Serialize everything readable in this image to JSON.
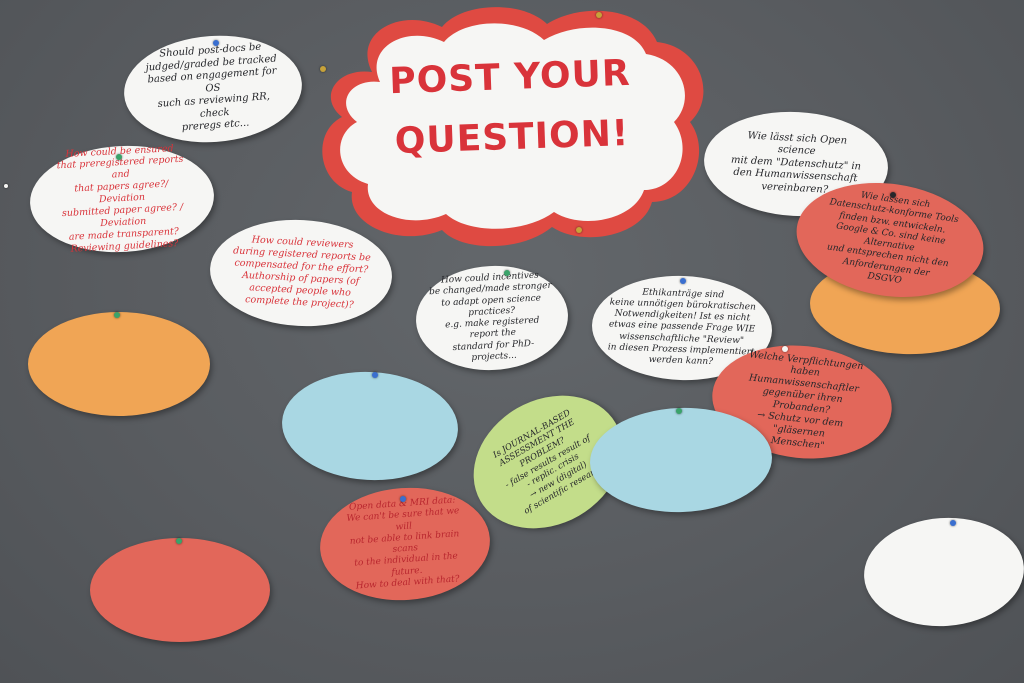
{
  "board": {
    "background": "#5a5d61"
  },
  "colors": {
    "white_card": "#f6f6f4",
    "orange_card": "#f0a555",
    "blue_card": "#a9d7e3",
    "red_card": "#e2675a",
    "green_card": "#c3dd8a",
    "red_ink": "#d9333a",
    "black_ink": "#26272b",
    "pin_green": "#3aa36a",
    "pin_blue": "#3a6fd0",
    "pin_gold": "#c7a23a"
  },
  "cloud": {
    "title": "POST YOUR\nQUESTION!",
    "fill": "#f6f6f4",
    "border": "#df4a42"
  },
  "cards": [
    {
      "text": "Should post-docs be\njudged/graded be tracked\nbased on engagement for OS\nsuch as reviewing RR, check\npreregs etc..."
    },
    {
      "text": "How could be ensured\nthat preregistered reports and\nthat papers agree?/ Deviation\nsubmitted paper agree? / Deviation\nare made transparent?\nReviewing guidelines?"
    },
    {
      "text": "How could reviewers\nduring registered reports be\ncompensated for the effort?\nAuthorship of papers (of accepted people who\ncomplete the project)?"
    },
    {
      "text": "How could incentives\nbe changed/made stronger\nto adapt open science practices?\ne.g. make registered report the\nstandard for PhD-projects..."
    },
    {
      "text": "Ethikanträge sind\nkeine unnötigen bürokratischen\nNotwendigkeiten! Ist es nicht\netwas eine passende Frage WIE\nwissenschaftliche \"Review\"\nin diesen Prozess implementiert\nwerden kann?"
    },
    {
      "text": "Wie lässt sich Open science\nmit dem \"Datenschutz\" in\nden Humanwissenschaft\nvereinbaren?"
    },
    {
      "text": "Wie lassen sich\nDatenschutz-konforme Tools\nfinden bzw. entwickeln.\nGoogle & Co. sind keine Alternative\nund entsprechen nicht den\nAnforderungen der\nDSGVO"
    },
    {
      "text": "Welche Verpflichtungen\nhaben Humanwissenschaftler\ngegenüber ihren Probanden?\n→ Schutz vor dem \"gläsernen\nMenschen\""
    },
    {
      "text": "Is JOURNAL-BASED\nASSESSMENT THE PROBLEM?\n- false results result of\n- replic. crisis\n→ new (digital)\nof scientific research"
    },
    {
      "text": "Open data & MRI data:\nWe can't be sure that we will\nnot be able to link brain scans\nto the individual in the future.\nHow to deal with that?"
    }
  ]
}
